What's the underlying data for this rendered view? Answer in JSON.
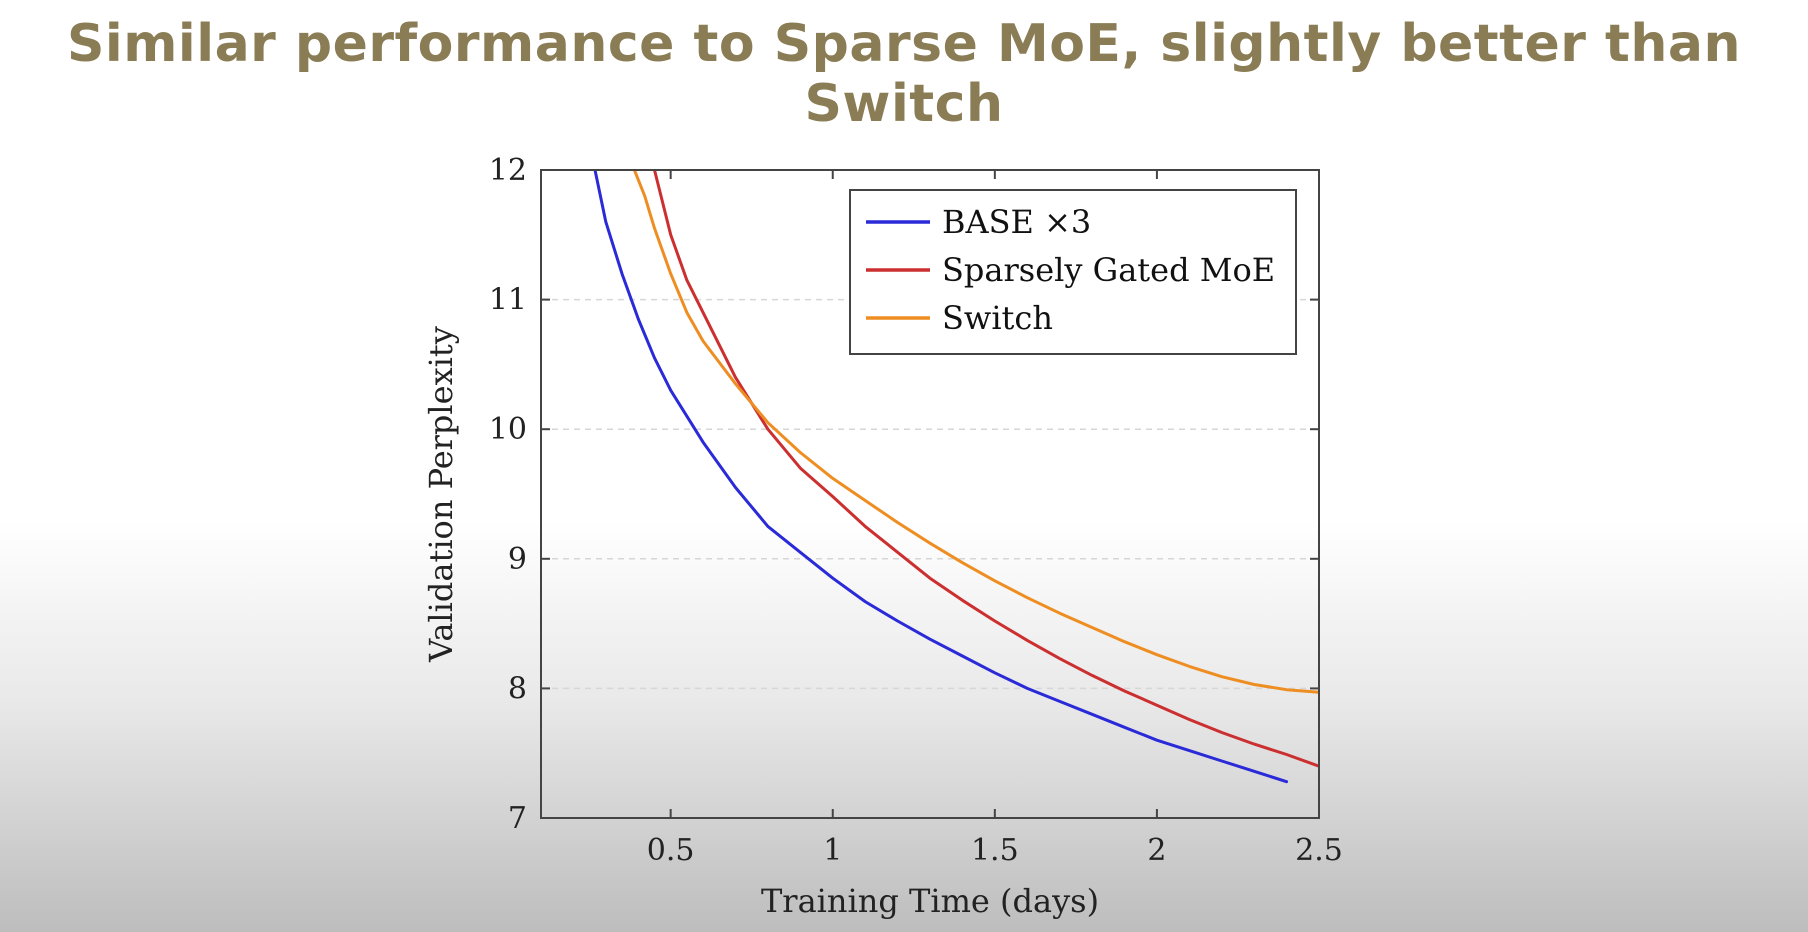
{
  "slide": {
    "title": "Similar performance to Sparse MoE, slightly better than Switch"
  },
  "chart_data": {
    "type": "line",
    "xlabel": "Training Time (days)",
    "ylabel": "Validation Perplexity",
    "xlim": [
      0.1,
      2.5
    ],
    "ylim": [
      7,
      12
    ],
    "xticks": [
      0.5,
      1,
      1.5,
      2,
      2.5
    ],
    "yticks": [
      7,
      8,
      9,
      10,
      11,
      12
    ],
    "grid": "horizontal-dashed",
    "legend_position": "top-right",
    "series": [
      {
        "name": "BASE ×3",
        "color": "#2a2ad8",
        "x": [
          0.25,
          0.3,
          0.35,
          0.4,
          0.45,
          0.5,
          0.6,
          0.7,
          0.8,
          0.9,
          1.0,
          1.1,
          1.2,
          1.3,
          1.4,
          1.5,
          1.6,
          1.7,
          1.8,
          1.9,
          2.0,
          2.1,
          2.2,
          2.3,
          2.4
        ],
        "y": [
          12.2,
          11.6,
          11.2,
          10.85,
          10.55,
          10.3,
          9.9,
          9.55,
          9.25,
          9.05,
          8.85,
          8.67,
          8.52,
          8.38,
          8.25,
          8.12,
          8.0,
          7.9,
          7.8,
          7.7,
          7.6,
          7.52,
          7.44,
          7.36,
          7.28
        ]
      },
      {
        "name": "Sparsely Gated MoE",
        "color": "#cc2f2f",
        "x": [
          0.42,
          0.45,
          0.5,
          0.55,
          0.6,
          0.7,
          0.8,
          0.9,
          1.0,
          1.1,
          1.2,
          1.3,
          1.4,
          1.5,
          1.6,
          1.7,
          1.8,
          1.9,
          2.0,
          2.1,
          2.2,
          2.3,
          2.4,
          2.5
        ],
        "y": [
          12.3,
          12.0,
          11.5,
          11.15,
          10.9,
          10.4,
          10.0,
          9.7,
          9.48,
          9.25,
          9.05,
          8.85,
          8.68,
          8.52,
          8.37,
          8.23,
          8.1,
          7.98,
          7.87,
          7.76,
          7.66,
          7.57,
          7.49,
          7.4
        ]
      },
      {
        "name": "Switch",
        "color": "#ee8e22",
        "x": [
          0.38,
          0.42,
          0.45,
          0.5,
          0.55,
          0.6,
          0.7,
          0.8,
          0.9,
          1.0,
          1.1,
          1.2,
          1.3,
          1.4,
          1.5,
          1.6,
          1.7,
          1.8,
          1.9,
          2.0,
          2.1,
          2.2,
          2.3,
          2.4,
          2.5
        ],
        "y": [
          12.05,
          11.8,
          11.55,
          11.2,
          10.9,
          10.68,
          10.35,
          10.05,
          9.82,
          9.62,
          9.45,
          9.28,
          9.12,
          8.97,
          8.83,
          8.7,
          8.58,
          8.47,
          8.36,
          8.26,
          8.17,
          8.09,
          8.03,
          7.99,
          7.97
        ]
      }
    ]
  }
}
